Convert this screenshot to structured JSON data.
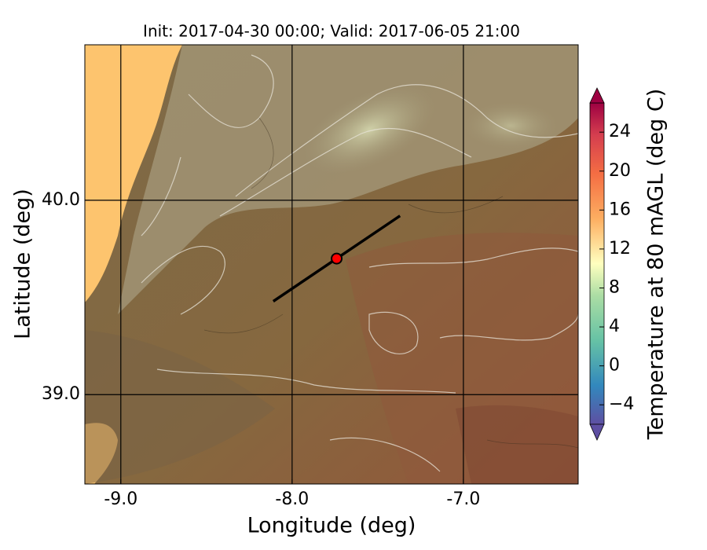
{
  "chart_data": {
    "type": "map",
    "title": "Init: 2017-04-30 00:00; Valid: 2017-06-05 21:00",
    "xlabel": "Longitude (deg)",
    "ylabel": "Latitude (deg)",
    "xlim": [
      -9.21,
      -6.33
    ],
    "ylim": [
      38.54,
      40.8
    ],
    "xticks": [
      {
        "value": -9,
        "label": "-9.0"
      },
      {
        "value": -8,
        "label": "-8.0"
      },
      {
        "value": -7,
        "label": "-7.0"
      }
    ],
    "yticks": [
      {
        "value": 39,
        "label": "39.0"
      },
      {
        "value": 40,
        "label": "40.0"
      }
    ],
    "grid": true,
    "section": {
      "lon": [
        -8.11,
        -7.37
      ],
      "lat": [
        39.48,
        39.92
      ],
      "color": "#000000"
    },
    "point": {
      "lon": -7.74,
      "lat": 39.7,
      "color": "#ff0000"
    },
    "colorbar": {
      "label": "Temperature at 80 mAGL (deg C)",
      "clim": [
        -6,
        27
      ],
      "ticks": [
        {
          "value": -4,
          "label": "−4"
        },
        0,
        4,
        8,
        12,
        16,
        20,
        24
      ]
    }
  }
}
